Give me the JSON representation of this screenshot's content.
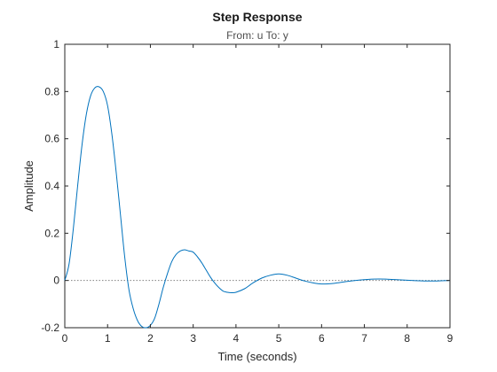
{
  "chart_data": {
    "type": "line",
    "title": "Step Response",
    "subtitle": "From: u  To: y",
    "xlabel": "Time (seconds)",
    "ylabel": "Amplitude",
    "xlim": [
      0,
      9
    ],
    "ylim": [
      -0.2,
      1
    ],
    "xticks": [
      0,
      1,
      2,
      3,
      4,
      5,
      6,
      7,
      8,
      9
    ],
    "yticks": [
      -0.2,
      0,
      0.2,
      0.4,
      0.6,
      0.8,
      1
    ],
    "ytick_labels": [
      "-0.2",
      "0",
      "0.2",
      "0.4",
      "0.6",
      "0.8",
      "1"
    ],
    "grid": false,
    "reference_line": {
      "y": 0,
      "style": "dotted",
      "color": "#808080"
    },
    "series": [
      {
        "color": "#0072bd",
        "x": [
          0,
          0.1,
          0.2,
          0.3,
          0.4,
          0.5,
          0.6,
          0.7,
          0.8,
          0.9,
          1.0,
          1.1,
          1.2,
          1.3,
          1.4,
          1.5,
          1.6,
          1.7,
          1.8,
          1.9,
          2.0,
          2.1,
          2.2,
          2.3,
          2.4,
          2.5,
          2.6,
          2.7,
          2.8,
          2.9,
          3.0,
          3.1,
          3.2,
          3.3,
          3.4,
          3.5,
          3.6,
          3.7,
          3.8,
          3.9,
          4.0,
          4.2,
          4.4,
          4.6,
          4.8,
          5.0,
          5.2,
          5.4,
          5.6,
          5.8,
          6.0,
          6.3,
          6.6,
          6.9,
          7.2,
          7.5,
          7.8,
          8.1,
          8.4,
          8.7,
          9.0
        ],
        "y": [
          0,
          0.07,
          0.22,
          0.4,
          0.57,
          0.7,
          0.78,
          0.815,
          0.82,
          0.8,
          0.74,
          0.62,
          0.46,
          0.28,
          0.1,
          -0.04,
          -0.12,
          -0.17,
          -0.195,
          -0.2,
          -0.19,
          -0.16,
          -0.1,
          -0.03,
          0.03,
          0.08,
          0.11,
          0.125,
          0.13,
          0.125,
          0.12,
          0.1,
          0.075,
          0.045,
          0.015,
          -0.01,
          -0.03,
          -0.045,
          -0.05,
          -0.052,
          -0.05,
          -0.035,
          -0.01,
          0.01,
          0.022,
          0.028,
          0.022,
          0.01,
          -0.002,
          -0.01,
          -0.015,
          -0.012,
          -0.004,
          0.002,
          0.006,
          0.006,
          0.003,
          0.0,
          -0.002,
          -0.002,
          0.0
        ]
      }
    ]
  }
}
